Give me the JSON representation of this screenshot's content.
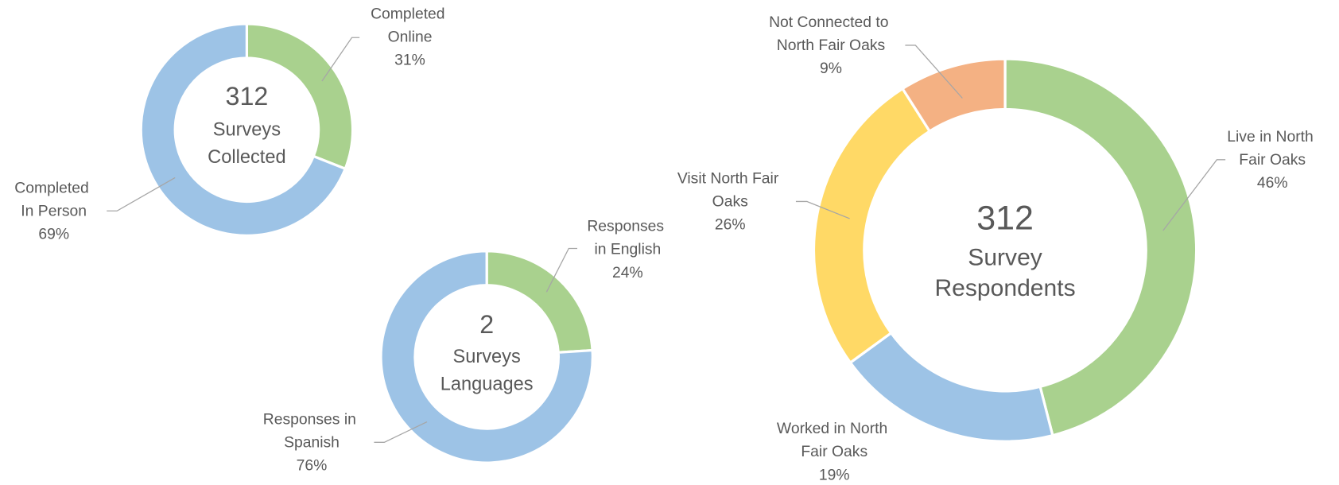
{
  "chart_data": [
    {
      "type": "donut",
      "center_value": 312,
      "center_lines": [
        "Surveys",
        "Collected"
      ],
      "categories": [
        "Completed Online",
        "Completed In Person"
      ],
      "values": [
        31,
        69
      ],
      "value_labels": [
        "31%",
        "69%"
      ],
      "colors": [
        "#a9d18e",
        "#9dc3e6"
      ]
    },
    {
      "type": "donut",
      "center_value": 2,
      "center_lines": [
        "Surveys",
        "Languages"
      ],
      "categories": [
        "Responses in English",
        "Responses in Spanish"
      ],
      "values": [
        24,
        76
      ],
      "value_labels": [
        "24%",
        "76%"
      ],
      "colors": [
        "#a9d18e",
        "#9dc3e6"
      ]
    },
    {
      "type": "donut",
      "center_value": 312,
      "center_lines": [
        "Survey",
        "Respondents"
      ],
      "categories": [
        "Live in North Fair Oaks",
        "Worked in North Fair Oaks",
        "Visit North Fair Oaks",
        "Not Connected to North Fair Oaks"
      ],
      "values": [
        46,
        19,
        26,
        9
      ],
      "value_labels": [
        "46%",
        "19%",
        "26%",
        "9%"
      ],
      "colors": [
        "#a9d18e",
        "#9dc3e6",
        "#ffd966",
        "#f4b183"
      ]
    }
  ]
}
